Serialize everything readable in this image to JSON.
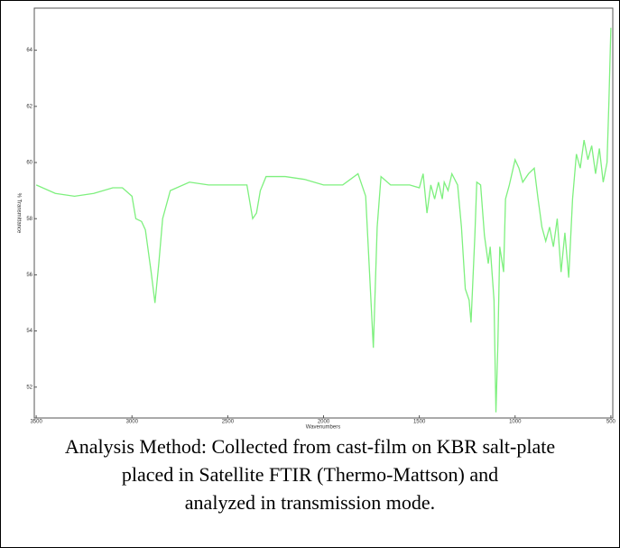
{
  "chart_data": {
    "type": "line",
    "xlabel": "Wavenumbers",
    "ylabel": "% Transmittance",
    "x": [
      3500,
      3400,
      3300,
      3200,
      3100,
      3050,
      3000,
      2980,
      2950,
      2930,
      2900,
      2880,
      2860,
      2840,
      2800,
      2700,
      2600,
      2500,
      2400,
      2370,
      2350,
      2330,
      2300,
      2200,
      2100,
      2000,
      1900,
      1820,
      1780,
      1760,
      1740,
      1720,
      1700,
      1650,
      1550,
      1500,
      1480,
      1460,
      1440,
      1420,
      1400,
      1380,
      1370,
      1350,
      1330,
      1300,
      1280,
      1260,
      1240,
      1230,
      1210,
      1200,
      1180,
      1160,
      1140,
      1130,
      1110,
      1100,
      1090,
      1080,
      1060,
      1050,
      1030,
      1000,
      980,
      960,
      930,
      900,
      880,
      860,
      840,
      820,
      800,
      780,
      760,
      740,
      720,
      700,
      680,
      660,
      640,
      620,
      600,
      580,
      560,
      540,
      520,
      510,
      500
    ],
    "series": [
      {
        "color": "#7ef07e",
        "values": [
          59.2,
          58.9,
          58.8,
          58.9,
          59.1,
          59.1,
          58.8,
          58.0,
          57.9,
          57.6,
          56.1,
          55.0,
          56.4,
          58.0,
          59.0,
          59.3,
          59.2,
          59.2,
          59.2,
          58.0,
          58.2,
          59.0,
          59.5,
          59.5,
          59.4,
          59.2,
          59.2,
          59.6,
          58.8,
          56.1,
          53.4,
          57.7,
          59.5,
          59.2,
          59.2,
          59.1,
          59.6,
          58.2,
          59.2,
          58.7,
          59.3,
          58.7,
          59.3,
          59.0,
          59.6,
          59.2,
          57.7,
          55.5,
          55.1,
          54.3,
          57.4,
          59.3,
          59.2,
          57.4,
          56.4,
          57.0,
          55.1,
          51.1,
          53.5,
          57.0,
          56.1,
          58.7,
          59.2,
          60.1,
          59.8,
          59.3,
          59.6,
          59.8,
          58.7,
          57.7,
          57.2,
          57.7,
          57.0,
          58.0,
          56.1,
          57.5,
          55.9,
          58.7,
          60.3,
          59.8,
          60.8,
          60.1,
          60.6,
          59.6,
          60.5,
          59.3,
          60.0,
          62.2,
          64.8
        ]
      }
    ],
    "xlim": [
      3510,
      490
    ],
    "xticks": [
      3500,
      3000,
      2500,
      2000,
      1500,
      1000,
      500
    ],
    "ylim": [
      50.9,
      65.5
    ],
    "yticks": [
      52,
      54,
      56,
      58,
      60,
      62,
      64
    ]
  },
  "caption": [
    "Analysis Method: Collected from cast-film on KBR salt-plate",
    "placed in Satellite FTIR (Thermo-Mattson) and",
    "analyzed in transmission mode."
  ]
}
